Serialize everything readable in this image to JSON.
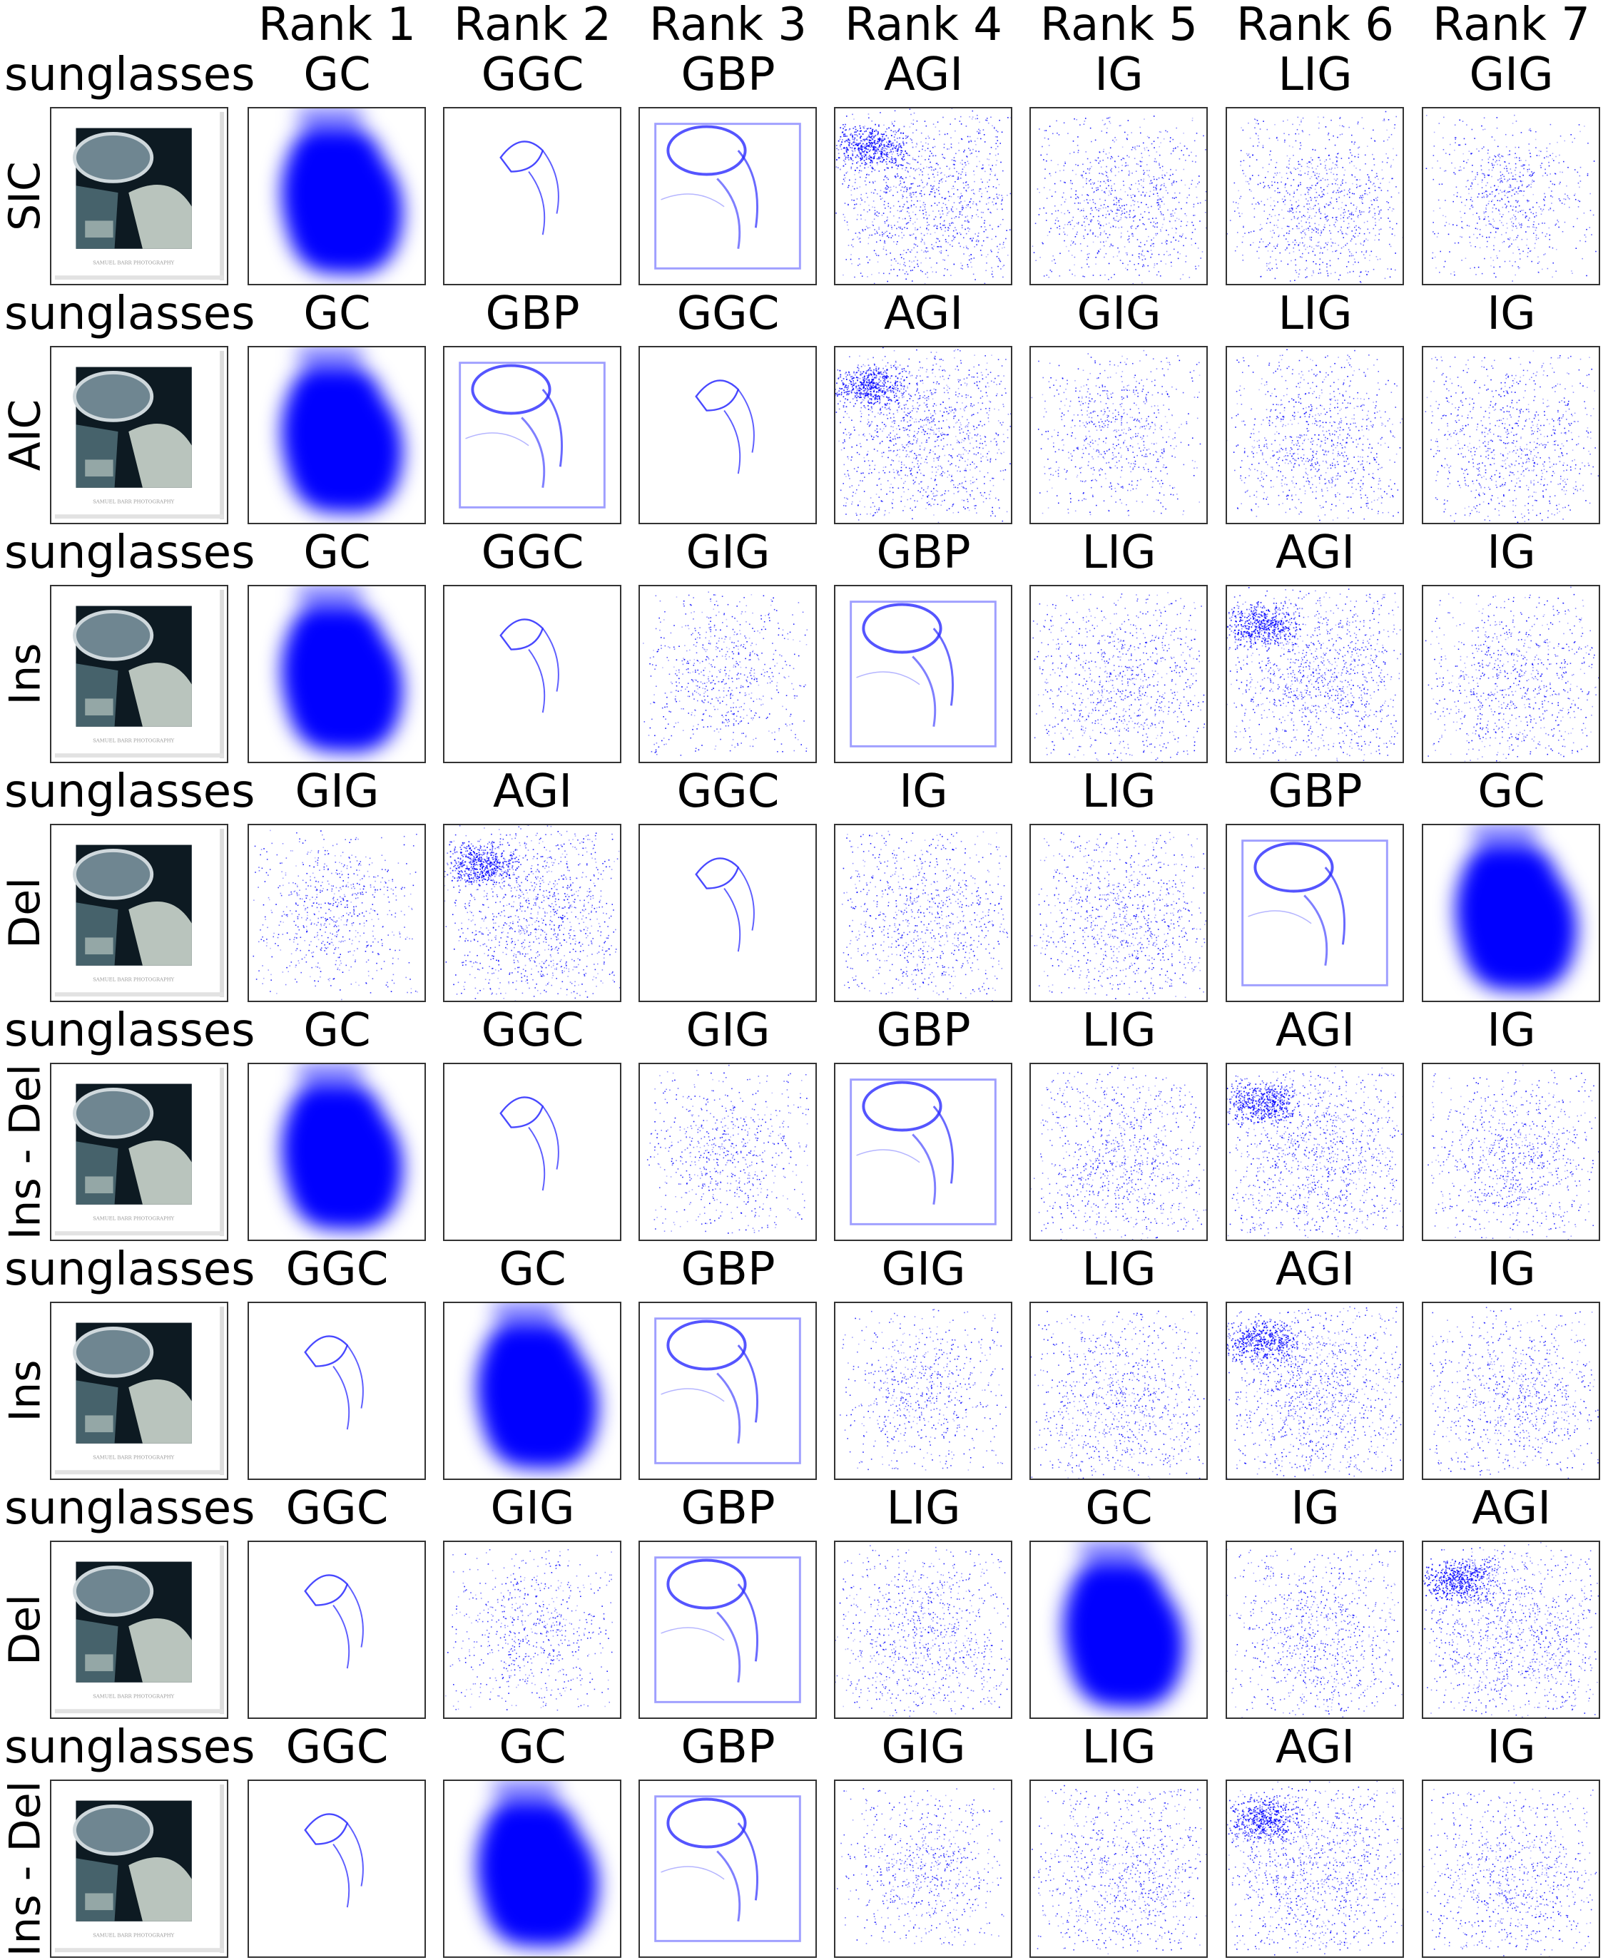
{
  "figure": {
    "rank_headers": [
      "Rank 1",
      "Rank 2",
      "Rank 3",
      "Rank 4",
      "Rank 5",
      "Rank 6",
      "Rank 7"
    ],
    "accent_color": "#0000ff",
    "rows": [
      {
        "label": "SIC",
        "class_name": "sunglasses",
        "methods": [
          "GC",
          "GGC",
          "GBP",
          "AGI",
          "IG",
          "LIG",
          "GIG"
        ]
      },
      {
        "label": "AIC",
        "class_name": "sunglasses",
        "methods": [
          "GC",
          "GBP",
          "GGC",
          "AGI",
          "GIG",
          "LIG",
          "IG"
        ]
      },
      {
        "label": "Ins",
        "class_name": "sunglasses",
        "methods": [
          "GC",
          "GGC",
          "GIG",
          "GBP",
          "LIG",
          "AGI",
          "IG"
        ]
      },
      {
        "label": "Del",
        "class_name": "sunglasses",
        "methods": [
          "GIG",
          "AGI",
          "GGC",
          "IG",
          "LIG",
          "GBP",
          "GC"
        ]
      },
      {
        "label": "Ins - Del",
        "class_name": "sunglasses",
        "methods": [
          "GC",
          "GGC",
          "GIG",
          "GBP",
          "LIG",
          "AGI",
          "IG"
        ]
      },
      {
        "label": "Ins",
        "class_name": "sunglasses",
        "methods": [
          "GGC",
          "GC",
          "GBP",
          "GIG",
          "LIG",
          "AGI",
          "IG"
        ]
      },
      {
        "label": "Del",
        "class_name": "sunglasses",
        "methods": [
          "GGC",
          "GIG",
          "GBP",
          "LIG",
          "GC",
          "IG",
          "AGI"
        ]
      },
      {
        "label": "Ins - Del",
        "class_name": "sunglasses",
        "methods": [
          "GGC",
          "GC",
          "GBP",
          "GIG",
          "LIG",
          "AGI",
          "IG"
        ]
      }
    ],
    "photo_caption": "SAMUEL BARR PHOTOGRAPHY"
  }
}
